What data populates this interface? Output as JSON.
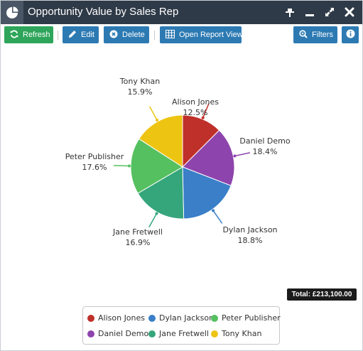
{
  "window": {
    "title": "Opportunity Value by Sales Rep",
    "icon": "pie-chart-icon",
    "controls": [
      "pin-icon",
      "minimize-icon",
      "expand-icon",
      "close-icon"
    ]
  },
  "toolbar": {
    "refresh_label": "Refresh",
    "edit_label": "Edit",
    "delete_label": "Delete",
    "open_report_label": "Open Report View",
    "filters_label": "Filters",
    "colors": {
      "refresh": "#2ea55a",
      "action": "#2d7ab3"
    }
  },
  "total_label": "Total: £213,100.00",
  "chart_data": {
    "type": "pie",
    "title": "",
    "slices": [
      {
        "name": "Alison Jones",
        "percent": 12.5,
        "label": "12.5%",
        "color": "#c0302b"
      },
      {
        "name": "Daniel Demo",
        "percent": 18.4,
        "label": "18.4%",
        "color": "#8e44ad"
      },
      {
        "name": "Dylan Jackson",
        "percent": 18.8,
        "label": "18.8%",
        "color": "#3a7fc8"
      },
      {
        "name": "Jane Fretwell",
        "percent": 16.9,
        "label": "16.9%",
        "color": "#35a57c"
      },
      {
        "name": "Peter Publisher",
        "percent": 17.6,
        "label": "17.6%",
        "color": "#55c05f"
      },
      {
        "name": "Tony Khan",
        "percent": 15.9,
        "label": "15.9%",
        "color": "#eec412"
      }
    ],
    "legend_position": "bottom"
  },
  "legend": {
    "items": [
      {
        "name": "Alison Jones",
        "color": "#c0302b"
      },
      {
        "name": "Dylan Jackson",
        "color": "#3a7fc8"
      },
      {
        "name": "Peter Publisher",
        "color": "#55c05f"
      },
      {
        "name": "Daniel Demo",
        "color": "#8e44ad"
      },
      {
        "name": "Jane Fretwell",
        "color": "#35a57c"
      },
      {
        "name": "Tony Khan",
        "color": "#eec412"
      }
    ]
  }
}
